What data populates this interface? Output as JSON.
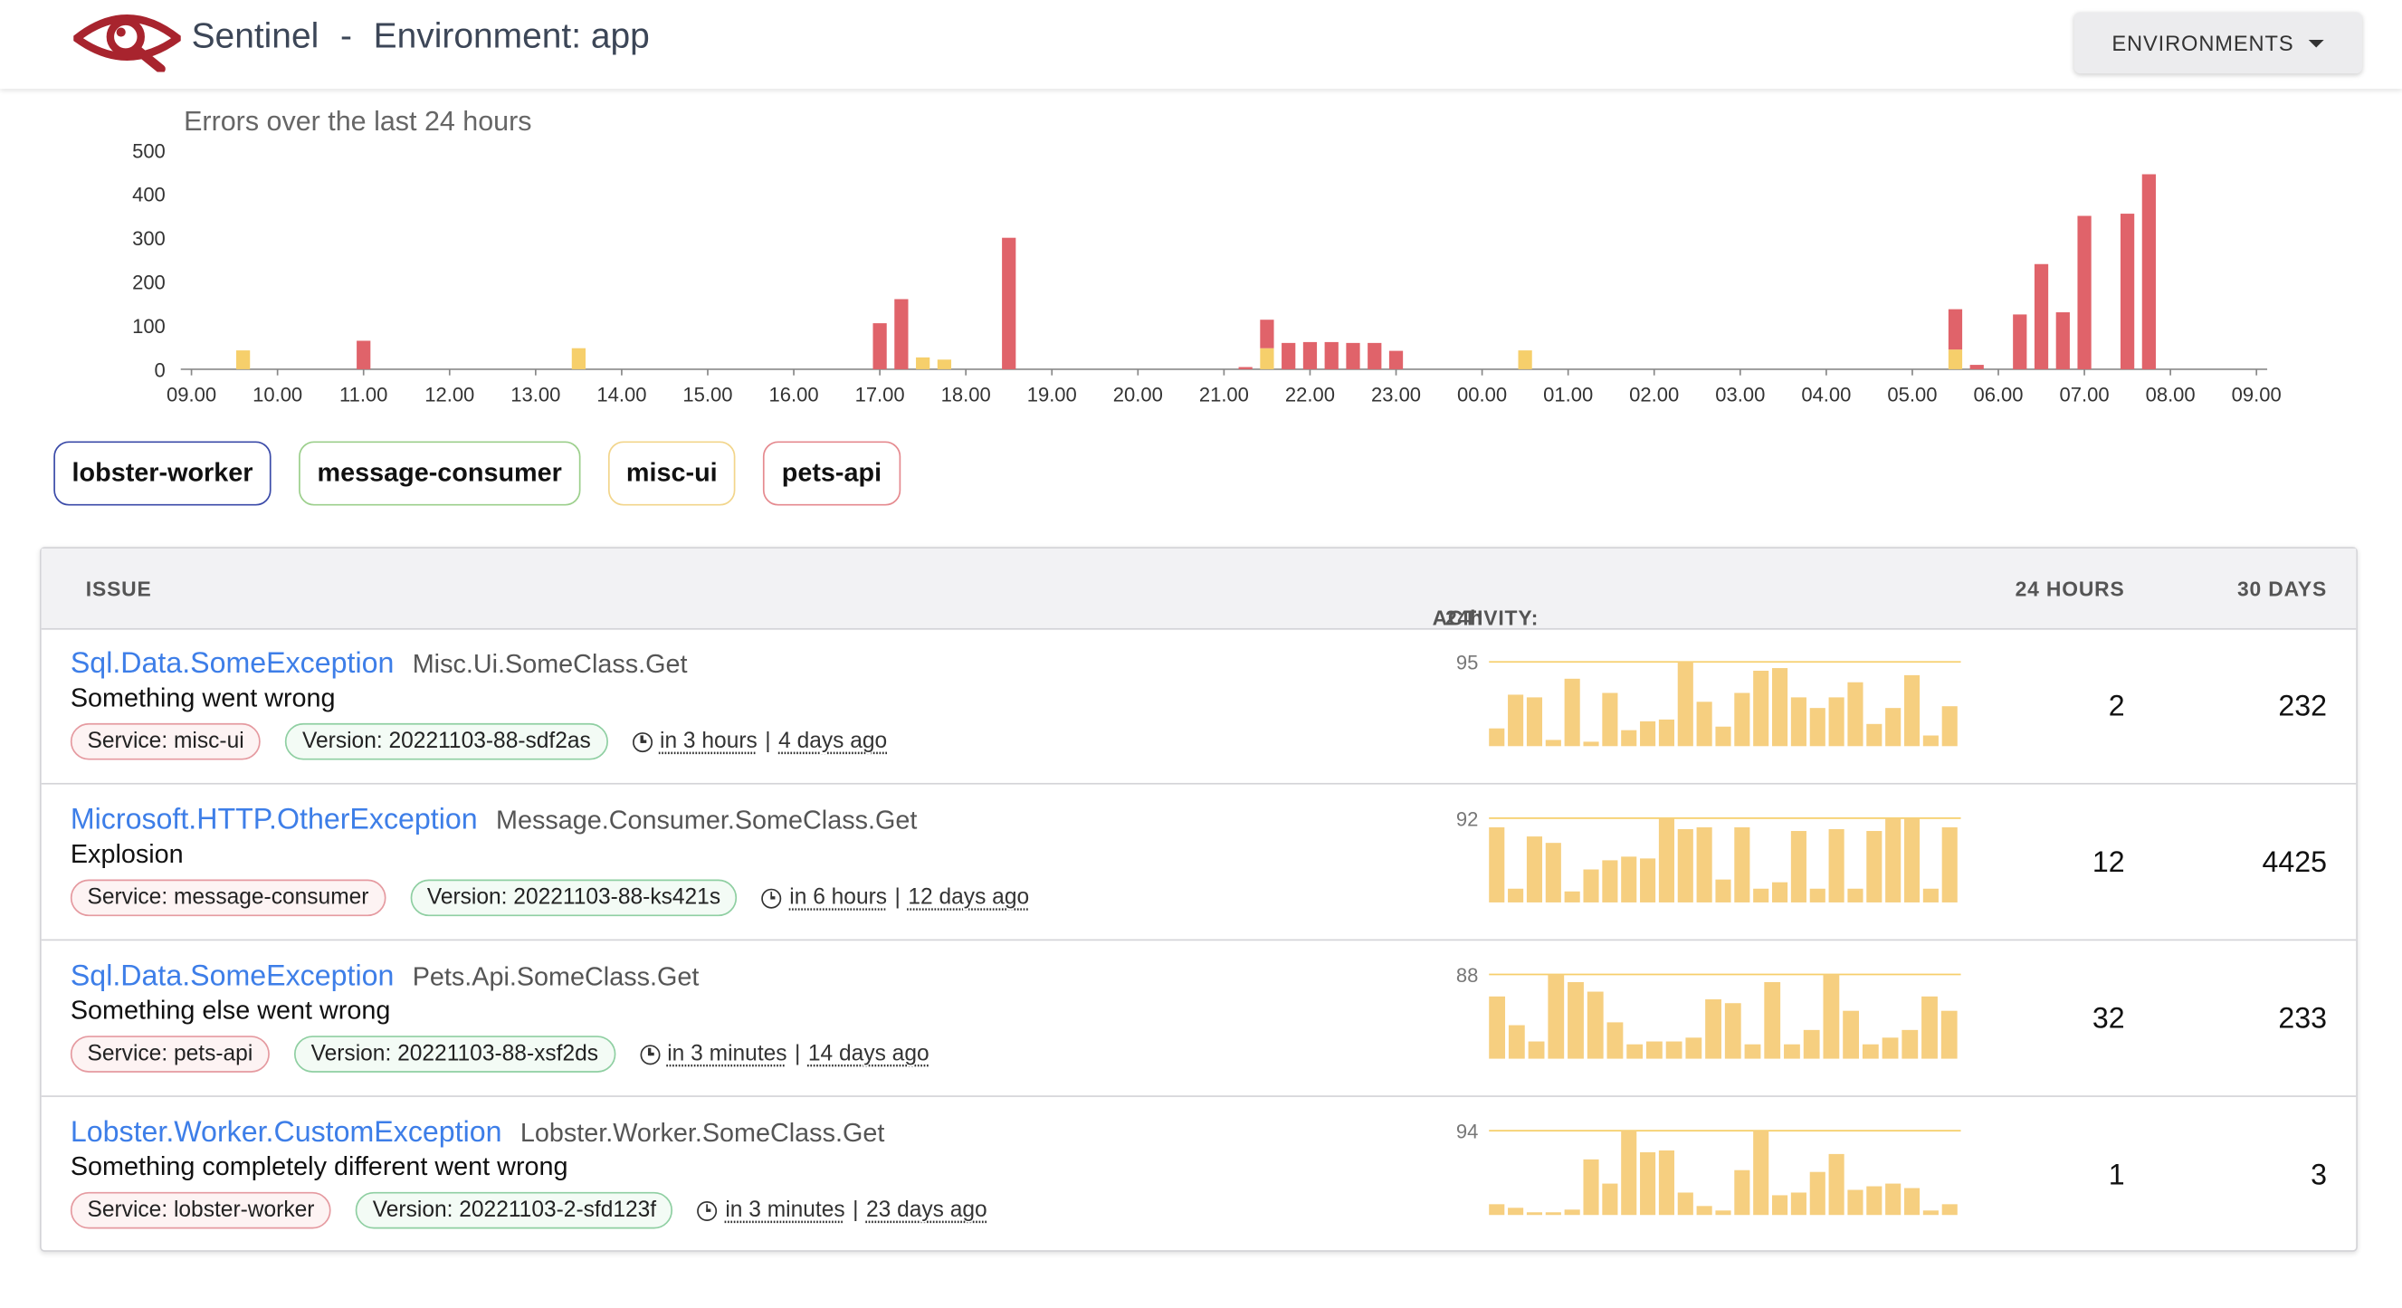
{
  "header": {
    "app_name": "Sentinel",
    "separator": "-",
    "environment_label": "Environment: app",
    "environments_button": "ENVIRONMENTS"
  },
  "chart_data": {
    "type": "bar",
    "stacked": true,
    "title": "Errors over the last 24 hours",
    "xlabel": "",
    "ylabel": "",
    "ylim": [
      0,
      500
    ],
    "yticks": [
      0,
      100,
      200,
      300,
      400,
      500
    ],
    "xticks": [
      "09.00",
      "10.00",
      "11.00",
      "12.00",
      "13.00",
      "14.00",
      "15.00",
      "16.00",
      "17.00",
      "18.00",
      "19.00",
      "20.00",
      "21.00",
      "22.00",
      "23.00",
      "00.00",
      "01.00",
      "02.00",
      "03.00",
      "04.00",
      "05.00",
      "06.00",
      "07.00",
      "08.00",
      "09.00"
    ],
    "grid": false,
    "legend": "none",
    "series": [
      {
        "color": "#f6cf6b",
        "x": [
          9.6,
          13.5,
          17.5,
          17.75,
          21.5,
          24.5,
          29.5
        ],
        "values": [
          43,
          48,
          27,
          22,
          48,
          43,
          45
        ]
      },
      {
        "color": "#e0636a",
        "x": [
          11.0,
          17.0,
          17.25,
          18.5,
          21.25,
          21.5,
          21.75,
          22.0,
          22.25,
          22.5,
          22.75,
          23.0,
          29.5,
          29.75,
          30.25,
          30.5,
          30.75,
          31.0,
          31.5,
          31.75
        ],
        "values": [
          65,
          105,
          160,
          300,
          5,
          65,
          60,
          62,
          62,
          60,
          60,
          42,
          92,
          10,
          125,
          240,
          130,
          350,
          355,
          445
        ]
      }
    ]
  },
  "services": [
    {
      "label": "lobster-worker",
      "color": "#3a4aa8"
    },
    {
      "label": "message-consumer",
      "color": "#9ccf8c"
    },
    {
      "label": "misc-ui",
      "color": "#f2d58b"
    },
    {
      "label": "pets-api",
      "color": "#e58a8f"
    }
  ],
  "table": {
    "col_issue": "ISSUE",
    "col_activity": "ACTIVITY:",
    "col_activity_range": "24h",
    "col_24h": "24 HOURS",
    "col_30d": "30 DAYS",
    "rows": [
      {
        "exception": "Sql.Data.SomeException",
        "location": "Misc.Ui.SomeClass.Get",
        "message": "Something went wrong",
        "service": "Service: misc-ui",
        "version": "Version: 20221103-88-sdf2as",
        "last_seen": "in 3 hours",
        "first_seen": "4 days ago",
        "spark_max": "95",
        "spark": [
          20,
          58,
          55,
          7,
          76,
          5,
          60,
          18,
          28,
          30,
          95,
          50,
          22,
          60,
          85,
          88,
          55,
          43,
          55,
          72,
          25,
          43,
          80,
          12,
          45
        ],
        "count_24h": "2",
        "count_30d": "232"
      },
      {
        "exception": "Microsoft.HTTP.OtherException",
        "location": "Message.Consumer.SomeClass.Get",
        "message": "Explosion",
        "service": "Service: message-consumer",
        "version": "Version: 20221103-88-ks421s",
        "last_seen": "in 6 hours",
        "first_seen": "12 days ago",
        "spark_max": "92",
        "spark": [
          82,
          15,
          72,
          65,
          12,
          36,
          46,
          50,
          48,
          92,
          80,
          82,
          25,
          82,
          15,
          22,
          78,
          15,
          80,
          15,
          78,
          92,
          92,
          15,
          82
        ],
        "count_24h": "12",
        "count_30d": "4425"
      },
      {
        "exception": "Sql.Data.SomeException",
        "location": "Pets.Api.SomeClass.Get",
        "message": "Something else went wrong",
        "service": "Service: pets-api",
        "version": "Version: 20221103-88-xsf2ds",
        "last_seen": "in 3 minutes",
        "first_seen": "14 days ago",
        "spark_max": "88",
        "spark": [
          65,
          35,
          18,
          88,
          80,
          70,
          38,
          15,
          18,
          18,
          22,
          62,
          58,
          15,
          80,
          15,
          30,
          88,
          50,
          15,
          22,
          30,
          65,
          50
        ],
        "count_24h": "32",
        "count_30d": "233"
      },
      {
        "exception": "Lobster.Worker.CustomException",
        "location": "Lobster.Worker.SomeClass.Get",
        "message": "Something completely different went wrong",
        "service": "Service: lobster-worker",
        "version": "Version: 20221103-2-sfd123f",
        "last_seen": "in 3 minutes",
        "first_seen": "23 days ago",
        "spark_max": "94",
        "spark": [
          12,
          8,
          3,
          3,
          6,
          62,
          35,
          94,
          70,
          72,
          25,
          10,
          5,
          50,
          94,
          22,
          25,
          48,
          68,
          28,
          32,
          35,
          30,
          5,
          12
        ],
        "count_24h": "1",
        "count_30d": "3"
      }
    ]
  }
}
